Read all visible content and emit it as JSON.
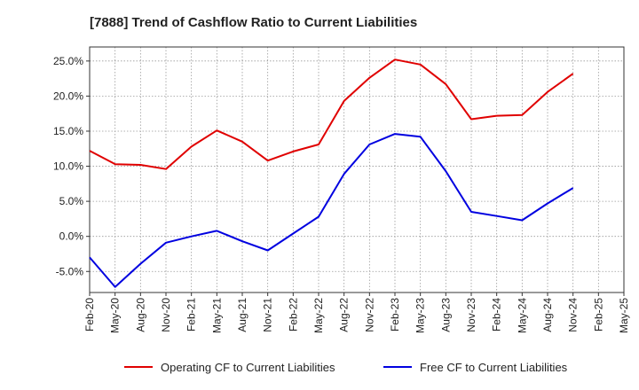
{
  "chart_data": {
    "type": "line",
    "title": "[7888]  Trend of Cashflow Ratio to Current Liabilities",
    "xlabel": "",
    "ylabel": "",
    "x": [
      "Feb-20",
      "May-20",
      "Aug-20",
      "Nov-20",
      "Feb-21",
      "May-21",
      "Aug-21",
      "Nov-21",
      "Feb-22",
      "May-22",
      "Aug-22",
      "Nov-22",
      "Feb-23",
      "May-23",
      "Aug-23",
      "Nov-23",
      "Feb-24",
      "May-24",
      "Aug-24",
      "Nov-24",
      "Feb-25",
      "May-25"
    ],
    "y_ticks": [
      "25.0%",
      "20.0%",
      "15.0%",
      "10.0%",
      "5.0%",
      "0.0%",
      "-5.0%"
    ],
    "y_tick_values": [
      25,
      20,
      15,
      10,
      5,
      0,
      -5
    ],
    "ylim": [
      -8,
      27
    ],
    "grid": true,
    "legend_position": "bottom",
    "series": [
      {
        "name": "Operating CF to Current Liabilities",
        "color": "#e00000",
        "values": [
          12.2,
          10.3,
          10.2,
          9.6,
          12.8,
          15.1,
          13.5,
          10.8,
          12.1,
          13.1,
          19.3,
          22.6,
          25.2,
          24.5,
          21.7,
          16.7,
          17.2,
          17.3,
          20.6,
          23.2,
          null,
          null
        ]
      },
      {
        "name": "Free CF to Current Liabilities",
        "color": "#0000e0",
        "values": [
          -3.0,
          -7.2,
          -3.9,
          -0.9,
          0.0,
          0.8,
          -0.7,
          -2.0,
          0.4,
          2.8,
          8.9,
          13.1,
          14.6,
          14.2,
          9.3,
          3.5,
          2.9,
          2.3,
          4.7,
          6.9,
          null,
          null
        ]
      }
    ]
  }
}
